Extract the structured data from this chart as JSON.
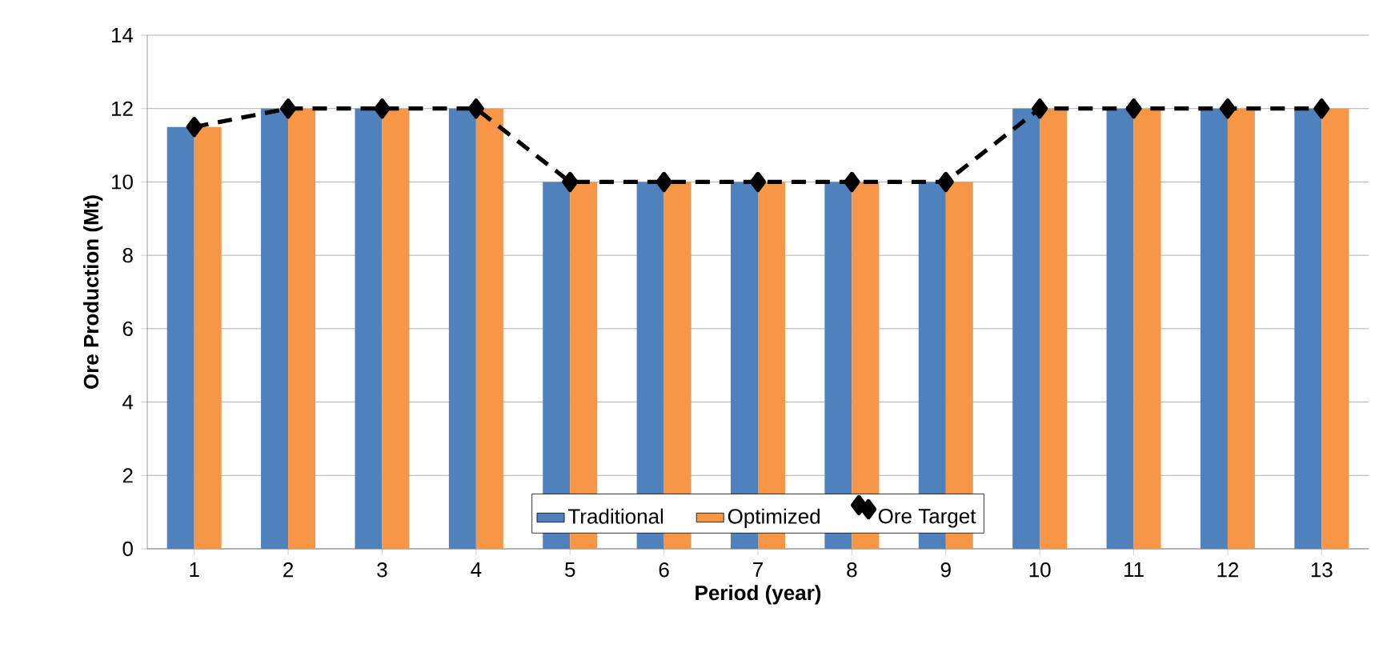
{
  "chart_data": {
    "type": "bar",
    "xlabel": "Period (year)",
    "ylabel": "Ore Production (Mt)",
    "categories": [
      "1",
      "2",
      "3",
      "4",
      "5",
      "6",
      "7",
      "8",
      "9",
      "10",
      "11",
      "12",
      "13"
    ],
    "series": [
      {
        "name": "Traditional",
        "color": "#4f81bd",
        "values": [
          11.5,
          12,
          12,
          12,
          10,
          10,
          10,
          10,
          10,
          12,
          12,
          12,
          12
        ]
      },
      {
        "name": "Optimized",
        "color": "#f79646",
        "values": [
          11.5,
          12,
          12,
          12,
          10,
          10,
          10,
          10,
          10,
          12,
          12,
          12,
          12
        ]
      },
      {
        "name": "Ore Target",
        "type": "line",
        "color": "#000000",
        "marker": "diamond",
        "line_style": "dashed",
        "values": [
          11.5,
          12,
          12,
          12,
          10,
          10,
          10,
          10,
          10,
          12,
          12,
          12,
          12
        ]
      }
    ],
    "ylim": [
      0,
      14
    ],
    "yticks": [
      0,
      2,
      4,
      6,
      8,
      10,
      12,
      14
    ],
    "grid": "y",
    "legend": "bottom"
  }
}
